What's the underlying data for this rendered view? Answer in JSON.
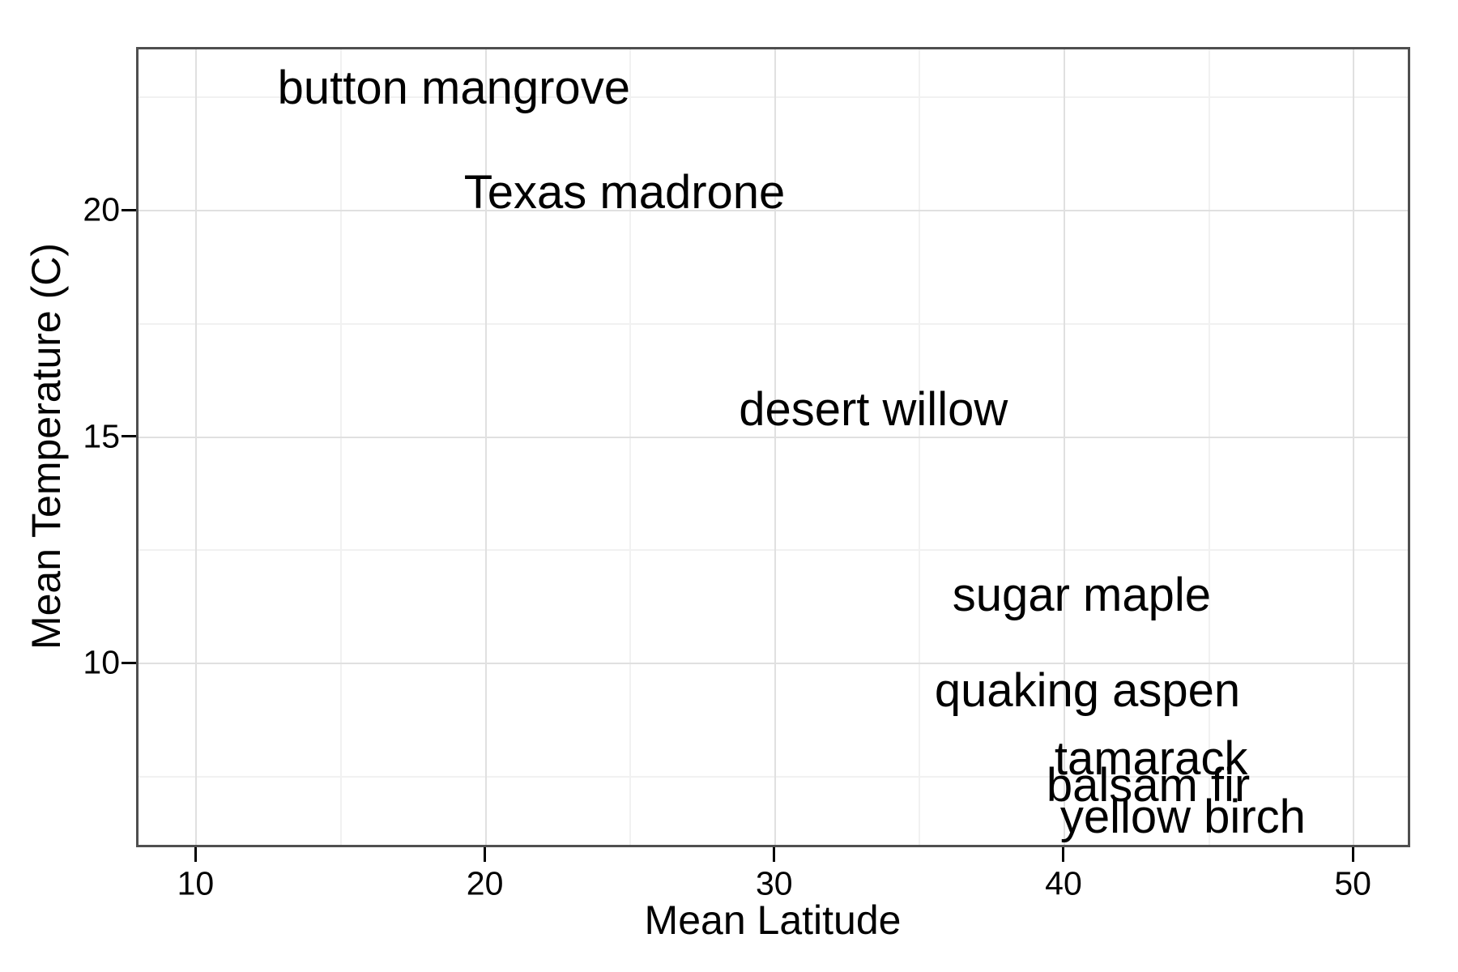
{
  "chart_data": {
    "type": "scatter",
    "subtype": "text-labels-only",
    "title": "",
    "xlabel": "Mean Latitude",
    "ylabel": "Mean Temperature (C)",
    "xlim": [
      8.0,
      51.9
    ],
    "ylim": [
      5.98,
      23.56
    ],
    "grid": true,
    "legend": false,
    "x_major_ticks": [
      10,
      20,
      30,
      40,
      50
    ],
    "x_minor_gridlines": [
      15,
      25,
      35,
      45
    ],
    "y_major_ticks": [
      10,
      15,
      20
    ],
    "y_minor_gridlines": [
      7.5,
      12.5,
      17.5,
      22.5
    ],
    "points": [
      {
        "label": "button mangrove",
        "x": 18.9,
        "y": 22.7
      },
      {
        "label": "Texas madrone",
        "x": 24.8,
        "y": 20.4
      },
      {
        "label": "desert willow",
        "x": 33.4,
        "y": 15.6
      },
      {
        "label": "sugar maple",
        "x": 40.6,
        "y": 11.5
      },
      {
        "label": "quaking aspen",
        "x": 40.8,
        "y": 9.4
      },
      {
        "label": "tamarack",
        "x": 43.0,
        "y": 7.9
      },
      {
        "label": "balsam fir",
        "x": 42.9,
        "y": 7.3
      },
      {
        "label": "yellow birch",
        "x": 44.1,
        "y": 6.6
      }
    ]
  },
  "style": {
    "text_color": "#000000",
    "panel_border_color": "#4f4f4f",
    "grid_major_color": "#e0e0e0",
    "grid_minor_color": "#f1f1f1",
    "tick_color": "#000000",
    "background_color": "#ffffff"
  }
}
